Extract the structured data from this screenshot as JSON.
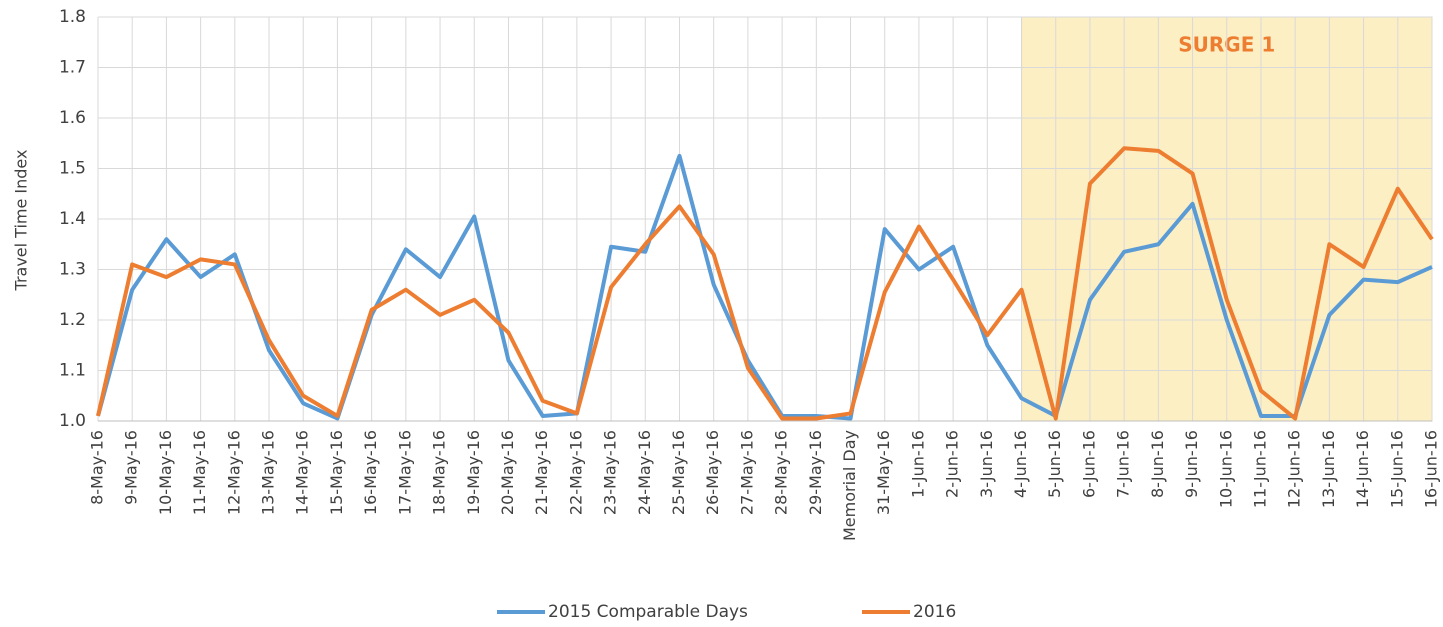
{
  "chart_data": {
    "type": "line",
    "y_label": "Travel Time Index",
    "categories": [
      "8-May-16",
      "9-May-16",
      "10-May-16",
      "11-May-16",
      "12-May-16",
      "13-May-16",
      "14-May-16",
      "15-May-16",
      "16-May-16",
      "17-May-16",
      "18-May-16",
      "19-May-16",
      "20-May-16",
      "21-May-16",
      "22-May-16",
      "23-May-16",
      "24-May-16",
      "25-May-16",
      "26-May-16",
      "27-May-16",
      "28-May-16",
      "29-May-16",
      "Memorial Day",
      "31-May-16",
      "1-Jun-16",
      "2-Jun-16",
      "3-Jun-16",
      "4-Jun-16",
      "5-Jun-16",
      "6-Jun-16",
      "7-Jun-16",
      "8-Jun-16",
      "9-Jun-16",
      "10-Jun-16",
      "11-Jun-16",
      "12-Jun-16",
      "13-Jun-16",
      "14-Jun-16",
      "15-Jun-16",
      "16-Jun-16"
    ],
    "series": [
      {
        "name": "2015 Comparable Days",
        "color": "#5b9bd5",
        "values": [
          1.01,
          1.26,
          1.36,
          1.285,
          1.33,
          1.14,
          1.035,
          1.005,
          1.21,
          1.34,
          1.285,
          1.405,
          1.12,
          1.01,
          1.015,
          1.345,
          1.335,
          1.525,
          1.27,
          1.12,
          1.01,
          1.01,
          1.005,
          1.38,
          1.3,
          1.345,
          1.15,
          1.045,
          1.01,
          1.24,
          1.335,
          1.35,
          1.43,
          1.2,
          1.01,
          1.01,
          1.21,
          1.28,
          1.275,
          1.305
        ]
      },
      {
        "name": "2016",
        "color": "#ed7d31",
        "values": [
          1.01,
          1.31,
          1.285,
          1.32,
          1.31,
          1.16,
          1.05,
          1.01,
          1.22,
          1.26,
          1.21,
          1.24,
          1.175,
          1.04,
          1.015,
          1.265,
          1.35,
          1.425,
          1.33,
          1.105,
          1.005,
          1.005,
          1.015,
          1.255,
          1.385,
          1.28,
          1.17,
          1.26,
          1.005,
          1.47,
          1.54,
          1.535,
          1.49,
          1.24,
          1.06,
          1.005,
          1.35,
          1.305,
          1.46,
          1.36
        ]
      }
    ],
    "ylim": [
      1,
      1.8
    ],
    "yticks": [
      {
        "value": 1,
        "label": "1.0"
      },
      1.1,
      1.2,
      1.3,
      1.4,
      1.5,
      1.6,
      1.7,
      1.8
    ],
    "grid": true,
    "legend": "bottom",
    "highlight": {
      "from": "4-Jun-16",
      "to": "16-Jun-16",
      "label": "SURGE 1",
      "color": "#fdefc4"
    }
  }
}
